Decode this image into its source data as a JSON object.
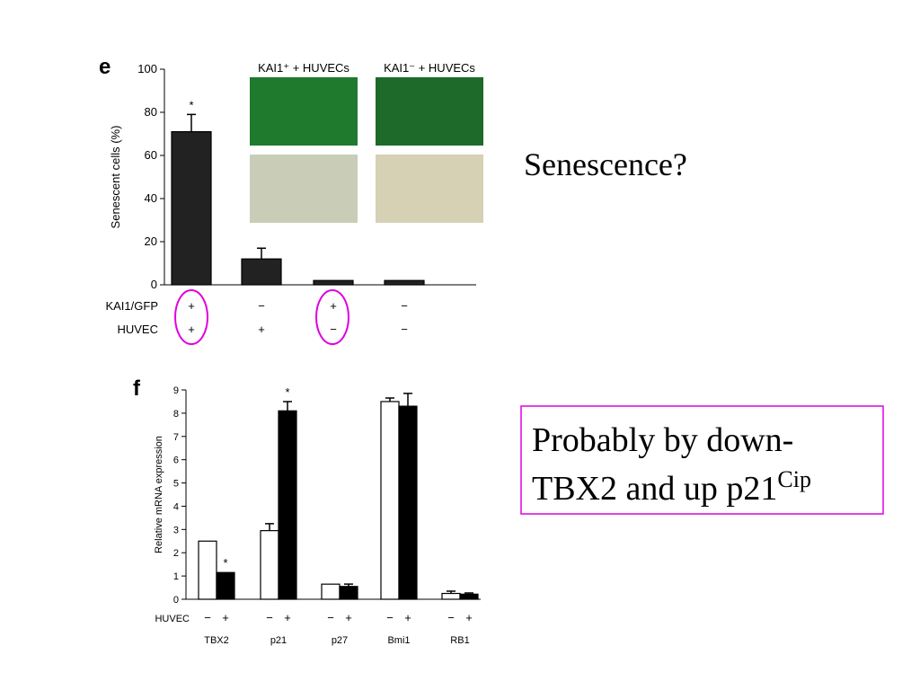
{
  "chart_data": [
    {
      "type": "bar",
      "panel": "e",
      "ylabel": "Senescent cells (%)",
      "values": [
        71,
        12,
        2,
        2
      ],
      "errors": [
        8,
        5,
        null,
        null
      ],
      "marks": [
        "*",
        null,
        null,
        null
      ],
      "color": "#222222",
      "ylim": [
        0,
        100
      ],
      "yticks": [
        0,
        20,
        40,
        60,
        80,
        100
      ],
      "condition_rows": [
        {
          "label": "KAI1/GFP",
          "values": [
            "+",
            "−",
            "+",
            "−"
          ]
        },
        {
          "label": "HUVEC",
          "values": [
            "+",
            "+",
            "−",
            "−"
          ]
        }
      ],
      "image_labels": [
        "KAI1⁺ + HUVECs",
        "KAI1⁻ + HUVECs"
      ]
    },
    {
      "type": "bar",
      "panel": "f",
      "ylabel": "Relative mRNA expression",
      "row_label": "HUVEC",
      "categories": [
        "TBX2",
        "p21",
        "p27",
        "Bmi1",
        "RB1"
      ],
      "series": [
        {
          "name": "−",
          "color": "#ffffff",
          "values": [
            2.5,
            2.95,
            0.65,
            8.5,
            0.25
          ],
          "errors": [
            null,
            0.3,
            null,
            0.15,
            0.1
          ],
          "marks": [
            null,
            null,
            null,
            null,
            null
          ]
        },
        {
          "name": "+",
          "color": "#000000",
          "values": [
            1.15,
            8.1,
            0.55,
            8.3,
            0.22
          ],
          "errors": [
            null,
            0.4,
            0.1,
            0.55,
            0.05
          ],
          "marks": [
            "*",
            "*",
            null,
            null,
            null
          ]
        }
      ],
      "ylim": [
        0,
        9
      ],
      "yticks": [
        0,
        1,
        2,
        3,
        4,
        5,
        6,
        7,
        8,
        9
      ]
    }
  ],
  "slide": {
    "question": "Senescence?",
    "note_lines": [
      "Probably by down-",
      "TBX2 and up p21"
    ],
    "note_superscript": "Cip"
  }
}
